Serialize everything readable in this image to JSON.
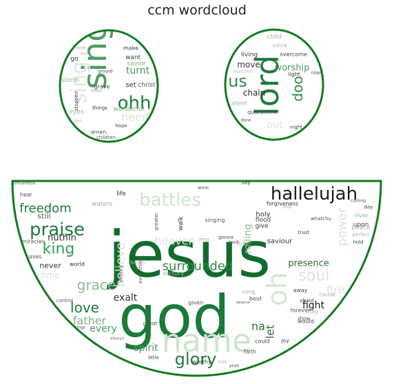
{
  "title": "ccm wordcloud",
  "colors": {
    "outline": "#117a1e"
  },
  "left_eye_words": [
    {
      "t": "sing",
      "c": "#2e8b45",
      "s": 48,
      "o": 0.85,
      "r": 90
    },
    {
      "t": "ohh",
      "c": "#1f7a3a",
      "s": 26
    },
    {
      "t": "sing",
      "c": "#dfe9df",
      "s": 30,
      "r": 90
    },
    {
      "t": "turnt",
      "c": "#4a9a5e",
      "s": 14
    },
    {
      "t": "need",
      "c": "#d9e6d9",
      "s": 16
    },
    {
      "t": "want",
      "c": "#3b3b3b",
      "s": 9
    },
    {
      "t": "savior",
      "c": "#7fae86",
      "s": 9
    },
    {
      "t": "make",
      "c": "#444",
      "s": 8
    },
    {
      "t": "go",
      "c": "#333",
      "s": 9
    },
    {
      "t": "set",
      "c": "#333",
      "s": 10
    },
    {
      "t": "christ",
      "c": "#555",
      "s": 9
    },
    {
      "t": "wonderful",
      "c": "#7fae86",
      "s": 9
    },
    {
      "t": "storm",
      "c": "#8fb996",
      "s": 9
    },
    {
      "t": "grave",
      "c": "#444",
      "s": 8
    },
    {
      "t": "ground",
      "c": "#444",
      "s": 6
    },
    {
      "t": "stopped",
      "c": "#444",
      "s": 7,
      "r": 90
    },
    {
      "t": "things",
      "c": "#333",
      "s": 7
    },
    {
      "t": "hope",
      "c": "#444",
      "s": 7
    },
    {
      "t": "amen",
      "c": "#2e6b35",
      "s": 8
    },
    {
      "t": "children",
      "c": "#555",
      "s": 7
    },
    {
      "t": "eyes",
      "c": "#8fb996",
      "s": 9
    },
    {
      "t": "thee",
      "c": "#aaa",
      "s": 7
    },
    {
      "t": "wide",
      "c": "#aaa",
      "s": 6
    },
    {
      "t": "sun",
      "c": "#aaa",
      "s": 6
    },
    {
      "t": "sin",
      "c": "#bbb",
      "s": 8
    }
  ],
  "right_eye_words": [
    {
      "t": "lord",
      "c": "#1e7a3c",
      "s": 46,
      "r": 90
    },
    {
      "t": "us",
      "c": "#2e8b45",
      "s": 24
    },
    {
      "t": "doo",
      "c": "#2e8b45",
      "s": 20,
      "r": 90
    },
    {
      "t": "worship",
      "c": "#4a9a5e",
      "s": 13
    },
    {
      "t": "move",
      "c": "#333",
      "s": 12
    },
    {
      "t": "chain",
      "c": "#2b2b2b",
      "s": 12
    },
    {
      "t": "lift",
      "c": "#cfdfcf",
      "s": 14,
      "r": 90
    },
    {
      "t": "living",
      "c": "#333",
      "s": 9
    },
    {
      "t": "overcome",
      "c": "#444",
      "s": 8
    },
    {
      "t": "light",
      "c": "#333",
      "s": 8
    },
    {
      "t": "roar",
      "c": "#444",
      "s": 7
    },
    {
      "t": "quarantine",
      "c": "#444",
      "s": 8
    },
    {
      "t": "stand",
      "c": "#8fb996",
      "s": 8
    },
    {
      "t": "child",
      "c": "#aaa",
      "s": 9
    },
    {
      "t": "voice",
      "c": "#aaa",
      "s": 8
    },
    {
      "t": "out",
      "c": "#d9e6d9",
      "s": 14
    },
    {
      "t": "night",
      "c": "#444",
      "s": 7
    },
    {
      "t": "manner",
      "c": "#bbb",
      "s": 7
    },
    {
      "t": "done",
      "c": "#555",
      "s": 6
    }
  ],
  "mouth_words": [
    {
      "t": "jesus",
      "c": "#126b2e",
      "s": 92
    },
    {
      "t": "god",
      "c": "#1a7a3a",
      "s": 86
    },
    {
      "t": "name",
      "c": "#cfe3cc",
      "s": 46
    },
    {
      "t": "hallelujah",
      "c": "#1a1a1a",
      "s": 26
    },
    {
      "t": "battles",
      "c": "#cfe3cc",
      "s": 26
    },
    {
      "t": "praise",
      "c": "#1e7a3c",
      "s": 26
    },
    {
      "t": "king",
      "c": "#3a9a55",
      "s": 22
    },
    {
      "t": "freedom",
      "c": "#1e7a3c",
      "s": 18
    },
    {
      "t": "nuthin",
      "c": "#333",
      "s": 13
    },
    {
      "t": "surrounded",
      "c": "#2e8b45",
      "s": 18
    },
    {
      "t": "oh",
      "c": "#d9e6d9",
      "s": 40,
      "r": 90
    },
    {
      "t": "soul",
      "c": "#d9e6d9",
      "s": 22
    },
    {
      "t": "power",
      "c": "#d9e6d9",
      "s": 18,
      "r": 90
    },
    {
      "t": "believe",
      "c": "#d9e6d9",
      "s": 18,
      "r": 90
    },
    {
      "t": "heaven",
      "c": "#d9e6d9",
      "s": 16
    },
    {
      "t": "glory",
      "c": "#1e7a3c",
      "s": 24
    },
    {
      "t": "love",
      "c": "#1e7a3c",
      "s": 20
    },
    {
      "t": "grace",
      "c": "#8fb996",
      "s": 20
    },
    {
      "t": "father",
      "c": "#7fae86",
      "s": 16
    },
    {
      "t": "every",
      "c": "#4a9a5e",
      "s": 14
    },
    {
      "t": "exalt",
      "c": "#333",
      "s": 14
    },
    {
      "t": "fight",
      "c": "#1a1a1a",
      "s": 14
    },
    {
      "t": "presence",
      "c": "#2e6b35",
      "s": 13
    },
    {
      "t": "rolling",
      "c": "#8fb996",
      "s": 14,
      "r": 90
    },
    {
      "t": "spirit",
      "c": "#4a9a5e",
      "s": 14
    },
    {
      "t": "let",
      "c": "#2e6b35",
      "s": 16,
      "r": 90
    },
    {
      "t": "na",
      "c": "#2e6b35",
      "s": 16
    },
    {
      "t": "fire",
      "c": "#d9e6d9",
      "s": 16
    },
    {
      "t": "never",
      "c": "#333",
      "s": 11
    },
    {
      "t": "still",
      "c": "#555",
      "s": 11
    },
    {
      "t": "saviour",
      "c": "#333",
      "s": 10
    },
    {
      "t": "holy",
      "c": "#333",
      "s": 10
    },
    {
      "t": "give",
      "c": "#333",
      "s": 9
    },
    {
      "t": "forgiveness",
      "c": "#333",
      "s": 8
    },
    {
      "t": "flood",
      "c": "#444",
      "s": 9
    },
    {
      "t": "walk",
      "c": "#333",
      "s": 9,
      "r": 90
    },
    {
      "t": "river",
      "c": "#8fb996",
      "s": 9
    },
    {
      "t": "upon",
      "c": "#444",
      "s": 9
    },
    {
      "t": "peace",
      "c": "#aaa",
      "s": 9
    },
    {
      "t": "life",
      "c": "#333",
      "s": 9
    },
    {
      "t": "waters",
      "c": "#8fb996",
      "s": 9
    },
    {
      "t": "miracles",
      "c": "#555",
      "s": 8
    },
    {
      "t": "saves",
      "c": "#555",
      "s": 8
    },
    {
      "t": "world",
      "c": "#333",
      "s": 8
    },
    {
      "t": "come",
      "c": "#d9e6d9",
      "s": 12
    },
    {
      "t": "louder",
      "c": "#555",
      "s": 8
    },
    {
      "t": "hear",
      "c": "#555",
      "s": 8
    },
    {
      "t": "faithfulness",
      "c": "#555",
      "s": 7
    },
    {
      "t": "always",
      "c": "#777",
      "s": 6
    },
    {
      "t": "great",
      "c": "#555",
      "s": 8
    },
    {
      "t": "given",
      "c": "#555",
      "s": 8
    },
    {
      "t": "song",
      "c": "#aaa",
      "s": 8
    },
    {
      "t": "bout",
      "c": "#444",
      "s": 8
    },
    {
      "t": "away",
      "c": "#444",
      "s": 8
    },
    {
      "t": "afraid",
      "c": "#444",
      "s": 7
    },
    {
      "t": "would",
      "c": "#444",
      "s": 8
    },
    {
      "t": "forever",
      "c": "#555",
      "s": 8
    },
    {
      "t": "could",
      "c": "#444",
      "s": 8
    },
    {
      "t": "faith",
      "c": "#555",
      "s": 8
    },
    {
      "t": "joy",
      "c": "#444",
      "s": 8
    },
    {
      "t": "worthy",
      "c": "#444",
      "s": 8
    },
    {
      "t": "little",
      "c": "#444",
      "s": 7
    },
    {
      "t": "victory",
      "c": "#aaa",
      "s": 9
    },
    {
      "t": "whatchu",
      "c": "#555",
      "s": 7
    },
    {
      "t": "trust",
      "c": "#444",
      "s": 7
    },
    {
      "t": "singing",
      "c": "#555",
      "s": 8
    },
    {
      "t": "wine",
      "c": "#555",
      "s": 7
    },
    {
      "t": "say",
      "c": "#444",
      "s": 8
    },
    {
      "t": "fear",
      "c": "#bbb",
      "s": 8
    },
    {
      "t": "day",
      "c": "#444",
      "s": 7
    },
    {
      "t": "hold",
      "c": "#444",
      "s": 7
    },
    {
      "t": "perfect",
      "c": "#aaa",
      "s": 7
    },
    {
      "t": "coming",
      "c": "#555",
      "s": 6
    },
    {
      "t": "show",
      "c": "#555",
      "s": 7
    },
    {
      "t": "cause",
      "c": "#aaa",
      "s": 8
    },
    {
      "t": "deep",
      "c": "#aaa",
      "s": 6
    },
    {
      "t": "gonna",
      "c": "#444",
      "s": 7
    },
    {
      "t": "look",
      "c": "#555",
      "s": 7
    },
    {
      "t": "find",
      "c": "#bbb",
      "s": 8
    },
    {
      "t": "greater",
      "c": "#555",
      "s": 7,
      "r": 90
    },
    {
      "t": "amazing",
      "c": "#555",
      "s": 6,
      "r": 90
    },
    {
      "t": "everything",
      "c": "#555",
      "s": 7,
      "r": 90
    },
    {
      "t": "hands",
      "c": "#bbb",
      "s": 7
    },
    {
      "t": "control",
      "c": "#555",
      "s": 7
    },
    {
      "t": "deserve",
      "c": "#555",
      "s": 5
    },
    {
      "t": "may",
      "c": "#aaa",
      "s": 8
    },
    {
      "t": "talk",
      "c": "#bbb",
      "s": 7
    },
    {
      "t": "yeah",
      "c": "#555",
      "s": 6
    },
    {
      "t": "blessings",
      "c": "#555",
      "s": 6
    },
    {
      "t": "heavens",
      "c": "#555",
      "s": 5
    },
    {
      "t": "earth",
      "c": "#555",
      "s": 5
    },
    {
      "t": "receive",
      "c": "#555",
      "s": 5
    }
  ]
}
